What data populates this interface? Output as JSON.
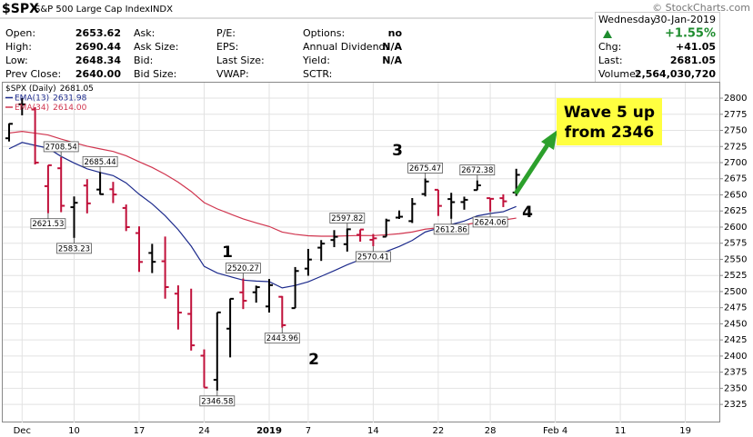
{
  "header": {
    "symbol": "$SPX",
    "name": "S&P 500 Large Cap Index",
    "exchange": "INDX",
    "copyright": "© StockCharts.com",
    "columns": [
      [
        {
          "label": "Open:",
          "value": "2653.62"
        },
        {
          "label": "High:",
          "value": "2690.44"
        },
        {
          "label": "Low:",
          "value": "2648.34"
        },
        {
          "label": "Prev Close:",
          "value": "2640.00"
        }
      ],
      [
        {
          "label": "Ask:"
        },
        {
          "label": "Ask Size:"
        },
        {
          "label": "Bid:"
        },
        {
          "label": "Bid Size:"
        }
      ],
      [
        {
          "label": "P/E:"
        },
        {
          "label": "EPS:"
        },
        {
          "label": "Last Size:"
        },
        {
          "label": "VWAP:"
        }
      ],
      [
        {
          "label": "Options:",
          "value": "no"
        },
        {
          "label": "Annual Dividend:",
          "value": "N/A"
        },
        {
          "label": "Yield:",
          "value": "N/A"
        },
        {
          "label": "SCTR:"
        }
      ]
    ],
    "summary": {
      "day": "Wednesday",
      "date": "30-Jan-2019",
      "change_pct": "+1.55%",
      "rows": [
        {
          "label": "Chg:",
          "value": "+41.05"
        },
        {
          "label": "Last:",
          "value": "2681.05"
        },
        {
          "label": "Volume:",
          "value": "2,564,030,720"
        }
      ]
    }
  },
  "chart_data": {
    "type": "ohlc",
    "name": "$SPX (Daily)",
    "legend_value": "2681.05",
    "up_color": "#000000",
    "down_color": "#c0103a",
    "categories": [
      null,
      "Dec",
      null,
      null,
      null,
      "10",
      null,
      null,
      null,
      null,
      "17",
      null,
      null,
      null,
      null,
      "24",
      null,
      null,
      null,
      null,
      "2019",
      null,
      null,
      "7",
      null,
      null,
      null,
      null,
      "14",
      null,
      null,
      null,
      null,
      "22",
      null,
      null,
      null,
      "28",
      null,
      null,
      null,
      null,
      "Feb 4",
      null,
      null,
      null,
      null,
      "11",
      null,
      null,
      null,
      null,
      "19",
      null,
      null
    ],
    "open": [
      2737.76,
      2790.5,
      2782.43,
      2663.51,
      2691.26,
      2630.86,
      2664.44,
      2658.23,
      2658.7,
      2629.68,
      2590.75,
      2559.9,
      2547.05,
      2496.77,
      2465.38,
      2400.56,
      2363.12,
      2442.5,
      2498.77,
      2498.94,
      2476.96,
      2491.92,
      2474.33,
      2535.61,
      2568.11,
      2580,
      2573.51,
      2588.11,
      2580.31,
      2585.1,
      2614.75,
      2609.28,
      2651.27,
      2657.88,
      2643.48,
      2638.84,
      2657.44,
      2644.89,
      2644.89,
      2653.62,
      null,
      null,
      null,
      null,
      null,
      null,
      null,
      null,
      null,
      null,
      null,
      null,
      null,
      null,
      null
    ],
    "high": [
      2760.88,
      2800.18,
      2785.93,
      2696.15,
      2708.54,
      2647.51,
      2674.35,
      2685.44,
      2670.19,
      2635.07,
      2601.13,
      2573.99,
      2585.29,
      2509.63,
      2504.41,
      2410.34,
      2467.76,
      2489.1,
      2520.27,
      2509.24,
      2519.49,
      2493.14,
      2538.07,
      2566.16,
      2579.82,
      2595.32,
      2597.82,
      2596.27,
      2589.32,
      2613.08,
      2625.76,
      2645.06,
      2675.47,
      2657.88,
      2653.19,
      2647.2,
      2672.38,
      2644.89,
      2650.93,
      2690.44,
      null,
      null,
      null,
      null,
      null,
      null,
      null,
      null,
      null,
      null,
      null,
      null,
      null,
      null,
      null
    ],
    "low": [
      2732.76,
      2773.38,
      2697.18,
      2621.53,
      2623.14,
      2583.23,
      2621.3,
      2650.26,
      2637.27,
      2593.84,
      2530.54,
      2528.71,
      2488.96,
      2441.18,
      2408.55,
      2351.1,
      2346.58,
      2397.94,
      2472.89,
      2482.82,
      2467.47,
      2443.96,
      2474.33,
      2524.56,
      2547.56,
      2568.89,
      2562.02,
      2577.4,
      2570.41,
      2585.1,
      2612.68,
      2606.36,
      2647.58,
      2617.27,
      2612.86,
      2627.01,
      2657.33,
      2624.06,
      2631.05,
      2648.34,
      null,
      null,
      null,
      null,
      null,
      null,
      null,
      null,
      null,
      null,
      null,
      null,
      null,
      null,
      null
    ],
    "close": [
      2760.17,
      2790.37,
      2700.06,
      2695.95,
      2633.08,
      2637.72,
      2636.78,
      2651.07,
      2650.54,
      2599.95,
      2545.94,
      2546.16,
      2506.96,
      2467.42,
      2416.62,
      2351.1,
      2467.7,
      2488.83,
      2485.74,
      2506.85,
      2510.03,
      2447.89,
      2531.94,
      2549.69,
      2574.41,
      2584.96,
      2596.64,
      2596.26,
      2582.61,
      2610.3,
      2616.1,
      2635.96,
      2670.71,
      2632.9,
      2638.7,
      2642.33,
      2664.76,
      2643.85,
      2640,
      2681.05,
      null,
      null,
      null,
      null,
      null,
      null,
      null,
      null,
      null,
      null,
      null,
      null,
      null,
      null,
      null
    ],
    "overlays": [
      {
        "name": "EMA(13)",
        "legend_value": "2631.98",
        "color": "#1c2a8c",
        "values": [
          2721.5,
          2731.3,
          2726.8,
          2722.4,
          2709.6,
          2699.4,
          2690.4,
          2684.8,
          2679.9,
          2668.5,
          2651,
          2636,
          2617.6,
          2596.1,
          2570.5,
          2539.1,
          2528.9,
          2523.2,
          2517.8,
          2516.3,
          2515.4,
          2505.7,
          2509.5,
          2515.2,
          2523.7,
          2532.4,
          2541.6,
          2549.4,
          2554.2,
          2562.2,
          2569.9,
          2579.3,
          2592.4,
          2598.2,
          2604,
          2609.4,
          2617.4,
          2621.1,
          2623.8,
          2631.98,
          null,
          null,
          null,
          null,
          null,
          null,
          null,
          null,
          null,
          null,
          null,
          null,
          null,
          null,
          null
        ]
      },
      {
        "name": "EMA(34)",
        "legend_value": "2614.00",
        "color": "#d0344e",
        "values": [
          2745.9,
          2748.4,
          2745.7,
          2742.9,
          2736.6,
          2730.9,
          2725.5,
          2721.3,
          2717.3,
          2710.6,
          2701.3,
          2692.5,
          2681.9,
          2669.7,
          2655.3,
          2638,
          2628.3,
          2620.4,
          2612.7,
          2606.5,
          2601,
          2592.3,
          2588.8,
          2586.6,
          2585.9,
          2585.9,
          2586.5,
          2587,
          2586.8,
          2588.1,
          2589.7,
          2592.4,
          2596.8,
          2598.9,
          2601.2,
          2603.5,
          2607,
          2609.1,
          2610.9,
          2614,
          null,
          null,
          null,
          null,
          null,
          null,
          null,
          null,
          null,
          null,
          null,
          null,
          null,
          null,
          null
        ]
      }
    ],
    "price_labels": [
      2708.54,
      2621.53,
      2583.23,
      2685.44,
      2520.27,
      2346.58,
      2443.96,
      2597.82,
      2570.41,
      2675.47,
      2612.86,
      2672.38,
      2624.06
    ],
    "annotations": [
      "1",
      "2",
      "3",
      "4"
    ],
    "callout": [
      "Wave 5 up",
      "from 2346"
    ],
    "ylim": [
      2297,
      2824
    ],
    "yticks": [
      2325,
      2350,
      2375,
      2400,
      2425,
      2450,
      2475,
      2500,
      2525,
      2550,
      2575,
      2600,
      2625,
      2650,
      2675,
      2700,
      2725,
      2750,
      2775,
      2800
    ],
    "grid": true
  }
}
